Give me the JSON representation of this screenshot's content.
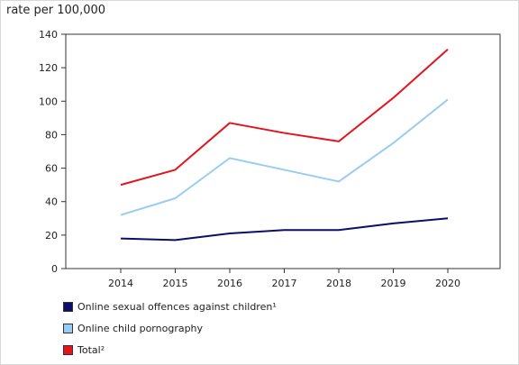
{
  "chart_data": {
    "type": "line",
    "unit_label": "rate per 100,000",
    "categories": [
      "2014",
      "2015",
      "2016",
      "2017",
      "2018",
      "2019",
      "2020"
    ],
    "ylim": [
      0,
      140
    ],
    "yticks": [
      0,
      20,
      40,
      60,
      80,
      100,
      120,
      140
    ],
    "grid": false,
    "legend_position": "bottom-left",
    "series": [
      {
        "name": "Online sexual offences against children¹",
        "color": "#0d0d6b",
        "values": [
          18,
          17,
          21,
          23,
          23,
          27,
          30
        ]
      },
      {
        "name": "Online child pornography",
        "color": "#99ccf2",
        "values": [
          32,
          42,
          66,
          59,
          52,
          75,
          101
        ]
      },
      {
        "name": "Total²",
        "color": "#e3141c",
        "values": [
          50,
          59,
          87,
          81,
          76,
          102,
          131
        ]
      }
    ]
  }
}
